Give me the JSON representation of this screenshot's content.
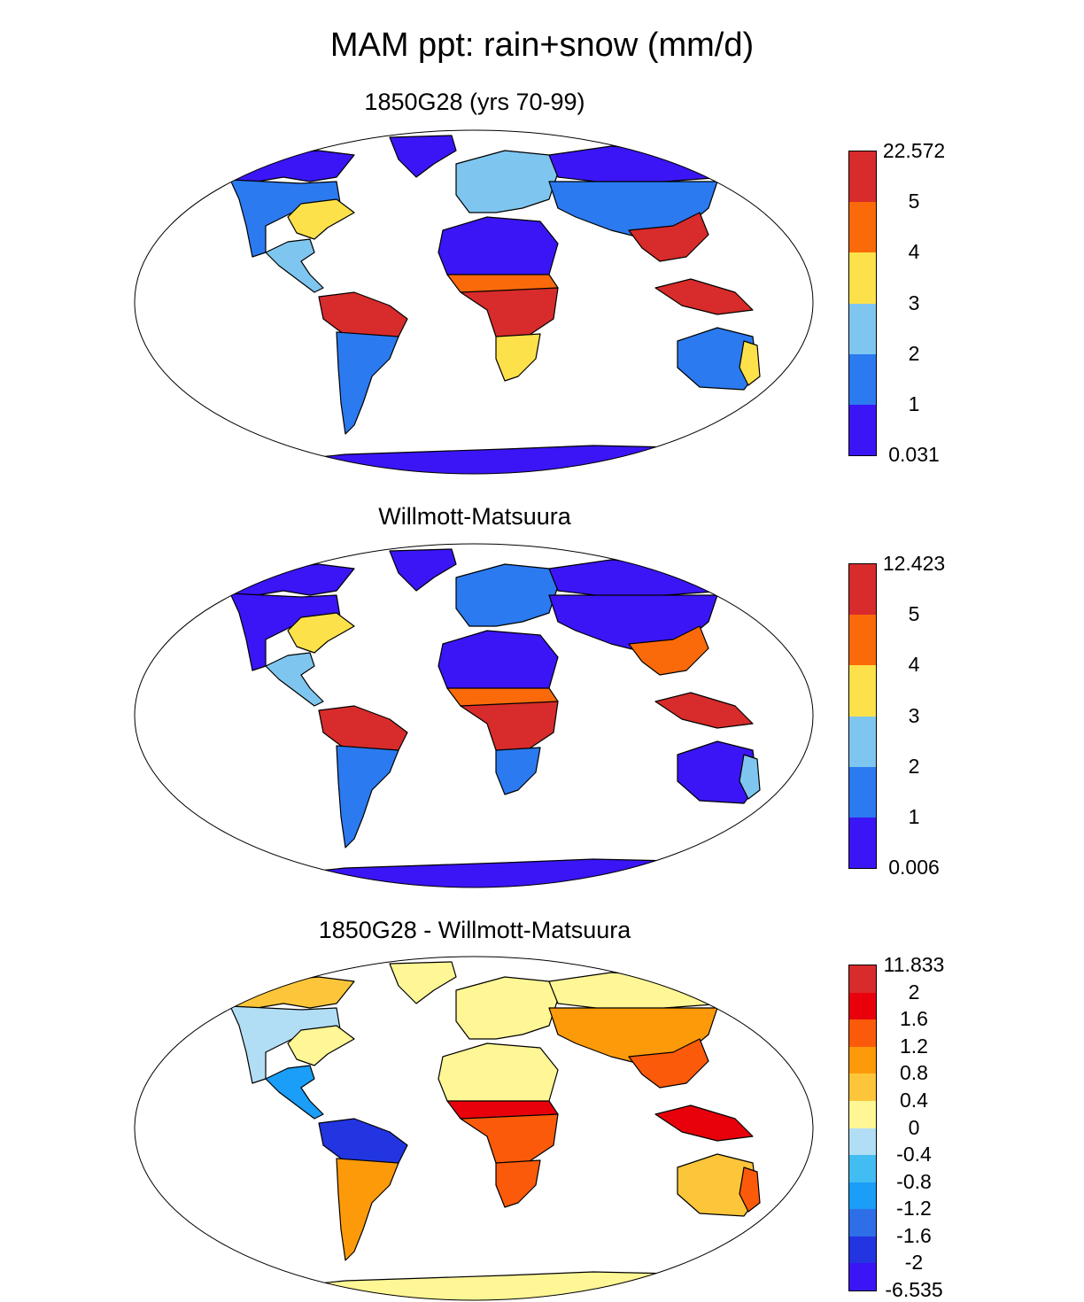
{
  "title": "MAM ppt: rain+snow (mm/d)",
  "colors": {
    "abs": [
      "#3b15f5",
      "#2b7af0",
      "#7ec6ef",
      "#fde14a",
      "#fb6a0a",
      "#d82b2b"
    ],
    "diff": [
      "#3b15f5",
      "#2335e0",
      "#2e6fe8",
      "#1a9ef7",
      "#42bdf2",
      "#b1def5",
      "#fff695",
      "#fdc63a",
      "#fd9a0a",
      "#fb5a0a",
      "#e8000b",
      "#d82b2b"
    ]
  },
  "panels": [
    {
      "title": "1850G28 (yrs 70-99)",
      "colorbar_labels": [
        "22.572",
        "5",
        "4",
        "3",
        "2",
        "1",
        "0.031"
      ],
      "palette": "abs",
      "regions": {
        "na_north": 0,
        "na_mid": 1,
        "na_east": 3,
        "centam": 2,
        "amazon": 5,
        "sa_south": 1,
        "europe": 2,
        "sahara": 0,
        "sahel": 4,
        "central_africa": 5,
        "southern_africa": 3,
        "siberia": 0,
        "asia_mid": 1,
        "se_asia": 5,
        "maritime": 5,
        "australia": 1,
        "australia_coast": 3,
        "antarctica": 0,
        "greenland": 0
      }
    },
    {
      "title": "Willmott-Matsuura",
      "colorbar_labels": [
        "12.423",
        "5",
        "4",
        "3",
        "2",
        "1",
        "0.006"
      ],
      "palette": "abs",
      "regions": {
        "na_north": 0,
        "na_mid": 0,
        "na_east": 3,
        "centam": 2,
        "amazon": 5,
        "sa_south": 1,
        "europe": 1,
        "sahara": 0,
        "sahel": 4,
        "central_africa": 5,
        "southern_africa": 1,
        "siberia": 0,
        "asia_mid": 0,
        "se_asia": 4,
        "maritime": 5,
        "australia": 0,
        "australia_coast": 2,
        "antarctica": 0,
        "greenland": 0
      }
    },
    {
      "title": "1850G28 - Willmott-Matsuura",
      "colorbar_labels": [
        "11.833",
        "2",
        "1.6",
        "1.2",
        "0.8",
        "0.4",
        "0",
        "-0.4",
        "-0.8",
        "-1.2",
        "-1.6",
        "-2",
        "-6.535"
      ],
      "palette": "diff",
      "regions": {
        "na_north": 7,
        "na_mid": 5,
        "na_east": 6,
        "centam": 3,
        "amazon": 1,
        "sa_south": 8,
        "europe": 6,
        "sahara": 6,
        "sahel": 10,
        "central_africa": 9,
        "southern_africa": 9,
        "siberia": 6,
        "asia_mid": 8,
        "se_asia": 9,
        "maritime": 10,
        "australia": 7,
        "australia_coast": 9,
        "antarctica": 6,
        "greenland": 6
      }
    }
  ]
}
